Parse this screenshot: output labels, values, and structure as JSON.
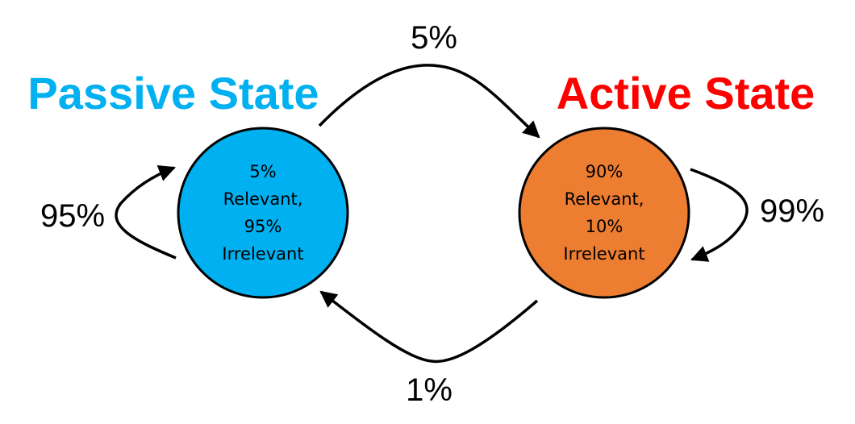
{
  "diagram": {
    "states": [
      {
        "id": "passive",
        "title": "Passive State",
        "title_color": "#00B0F0",
        "fill_color": "#00B0F0",
        "lines": [
          "5%",
          "Relevant,",
          "95%",
          "Irrelevant"
        ]
      },
      {
        "id": "active",
        "title": "Active State",
        "title_color": "#FF0000",
        "fill_color": "#ED7D31",
        "lines": [
          "90%",
          "Relevant,",
          "10%",
          "Irrelevant"
        ]
      }
    ],
    "transitions": [
      {
        "from": "passive",
        "to": "active",
        "label": "5%"
      },
      {
        "from": "active",
        "to": "passive",
        "label": "1%"
      },
      {
        "from": "passive",
        "to": "passive",
        "label": "95%"
      },
      {
        "from": "active",
        "to": "active",
        "label": "99%"
      }
    ]
  }
}
